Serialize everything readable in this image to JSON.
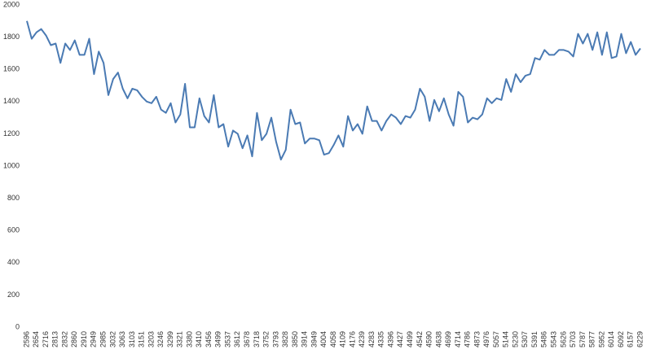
{
  "chart_data": {
    "type": "line",
    "categories": [
      "2596",
      null,
      "2654",
      null,
      "2716",
      null,
      "2813",
      null,
      "2832",
      null,
      "2860",
      null,
      "2910",
      null,
      "2949",
      null,
      "2985",
      null,
      "3032",
      null,
      "3063",
      null,
      "3103",
      null,
      "3151",
      null,
      "3203",
      null,
      "3246",
      null,
      "3299",
      null,
      "3321",
      null,
      "3380",
      null,
      "3410",
      null,
      "3456",
      null,
      "3499",
      null,
      "3537",
      null,
      "3612",
      null,
      "3678",
      null,
      "3718",
      null,
      "3752",
      null,
      "3793",
      null,
      "3828",
      null,
      "3850",
      null,
      "3914",
      null,
      "3949",
      null,
      "4004",
      null,
      "4058",
      null,
      "4109",
      null,
      "4176",
      null,
      "4239",
      null,
      "4283",
      null,
      "4335",
      null,
      "4396",
      null,
      "4427",
      null,
      "4499",
      null,
      "4542",
      null,
      "4590",
      null,
      "4638",
      null,
      "4699",
      null,
      "4714",
      null,
      "4786",
      null,
      "4873",
      null,
      "4976",
      null,
      "5057",
      null,
      "5144",
      null,
      "5230",
      null,
      "5307",
      null,
      "5391",
      null,
      "5486",
      null,
      "5543",
      null,
      "5626",
      null,
      "5703",
      null,
      "5787",
      null,
      "5877",
      null,
      "5952",
      null,
      "6014",
      null,
      "6092",
      null,
      "6157",
      null,
      "6229"
    ],
    "values": [
      1900,
      1790,
      1830,
      1850,
      1810,
      1750,
      1760,
      1640,
      1760,
      1720,
      1780,
      1690,
      1690,
      1790,
      1570,
      1710,
      1640,
      1440,
      1540,
      1580,
      1480,
      1420,
      1480,
      1470,
      1430,
      1400,
      1390,
      1430,
      1350,
      1330,
      1390,
      1270,
      1320,
      1510,
      1240,
      1240,
      1420,
      1310,
      1270,
      1440,
      1240,
      1260,
      1120,
      1220,
      1200,
      1110,
      1190,
      1060,
      1330,
      1160,
      1200,
      1300,
      1150,
      1040,
      1100,
      1350,
      1260,
      1270,
      1140,
      1170,
      1170,
      1160,
      1070,
      1080,
      1130,
      1190,
      1120,
      1310,
      1220,
      1260,
      1200,
      1370,
      1280,
      1280,
      1220,
      1280,
      1320,
      1300,
      1260,
      1310,
      1300,
      1350,
      1480,
      1430,
      1280,
      1410,
      1340,
      1420,
      1320,
      1250,
      1460,
      1430,
      1270,
      1300,
      1290,
      1320,
      1420,
      1390,
      1420,
      1410,
      1540,
      1460,
      1570,
      1520,
      1560,
      1570,
      1670,
      1660,
      1720,
      1690,
      1690,
      1720,
      1720,
      1710,
      1680,
      1820,
      1760,
      1820,
      1720,
      1830,
      1690,
      1830,
      1670,
      1680,
      1820,
      1700,
      1770,
      1690,
      1730
    ],
    "color": "#4a7ab3",
    "ylim": [
      0,
      2000
    ],
    "yticks": [
      0,
      200,
      400,
      600,
      800,
      1000,
      1200,
      1400,
      1600,
      1800,
      2000
    ],
    "grid": false
  }
}
